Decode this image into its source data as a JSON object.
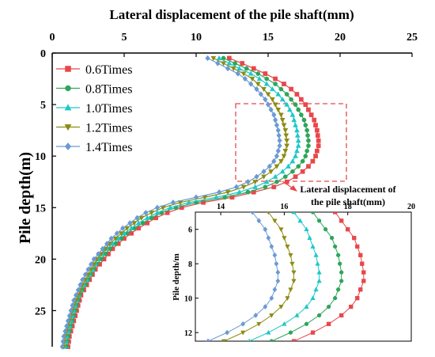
{
  "chart_data": [
    {
      "type": "line",
      "xlabel": "Lateral displacement of the pile shaft(mm)",
      "ylabel": "Pile depth(m)",
      "xlim": [
        0,
        25
      ],
      "ylim": [
        0,
        28.5
      ],
      "x_axis_position": "top",
      "y_inverted": true,
      "x_ticks": [
        "0",
        "5",
        "10",
        "15",
        "20",
        "25"
      ],
      "y_ticks": [
        "0",
        "5",
        "10",
        "15",
        "20",
        "25"
      ],
      "legend_position": "top-left",
      "depths": [
        0.5,
        1.0,
        1.5,
        2.0,
        2.5,
        3.0,
        3.5,
        4.0,
        4.5,
        5.0,
        5.5,
        6.0,
        6.5,
        7.0,
        7.5,
        8.0,
        8.5,
        9.0,
        9.5,
        10.0,
        10.5,
        11.0,
        11.5,
        12.0,
        12.5,
        13.0,
        13.5,
        14.0,
        14.5,
        15.0,
        15.5,
        16.0,
        16.5,
        17.0,
        17.5,
        18.0,
        18.5,
        19.0,
        19.5,
        20.0,
        20.5,
        21.0,
        21.5,
        22.0,
        22.5,
        23.0,
        23.5,
        24.0,
        24.5,
        25.0,
        25.5,
        26.0,
        26.5,
        27.0,
        27.5,
        28.0,
        28.5
      ],
      "series": [
        {
          "name": "0.6Times",
          "color": "#e8474b",
          "marker": "square",
          "values": [
            12.3,
            13.2,
            14.0,
            14.8,
            15.5,
            16.1,
            16.6,
            17.0,
            17.3,
            17.6,
            17.8,
            18.0,
            18.2,
            18.3,
            18.4,
            18.45,
            18.5,
            18.5,
            18.4,
            18.3,
            18.1,
            17.8,
            17.4,
            16.9,
            16.3,
            15.4,
            14.0,
            12.5,
            10.5,
            9.0,
            8.0,
            7.2,
            6.6,
            6.0,
            5.5,
            5.0,
            4.6,
            4.2,
            3.9,
            3.6,
            3.3,
            3.0,
            2.8,
            2.6,
            2.4,
            2.2,
            2.0,
            1.9,
            1.8,
            1.7,
            1.6,
            1.5,
            1.4,
            1.3,
            1.2,
            1.15,
            1.1
          ]
        },
        {
          "name": "0.8Times",
          "color": "#2ea55a",
          "marker": "circle",
          "values": [
            11.9,
            12.7,
            13.5,
            14.3,
            14.9,
            15.5,
            15.9,
            16.3,
            16.6,
            16.9,
            17.1,
            17.3,
            17.5,
            17.6,
            17.7,
            17.75,
            17.8,
            17.8,
            17.7,
            17.6,
            17.4,
            17.1,
            16.7,
            16.2,
            15.6,
            14.8,
            13.6,
            12.0,
            10.0,
            8.6,
            7.6,
            6.9,
            6.3,
            5.7,
            5.2,
            4.8,
            4.4,
            4.0,
            3.7,
            3.4,
            3.1,
            2.9,
            2.7,
            2.5,
            2.3,
            2.1,
            1.9,
            1.8,
            1.7,
            1.6,
            1.5,
            1.4,
            1.3,
            1.2,
            1.1,
            1.05,
            1.0
          ]
        },
        {
          "name": "1.0Times",
          "color": "#1ec8c8",
          "marker": "triangle-up",
          "values": [
            11.6,
            12.3,
            13.0,
            13.8,
            14.4,
            14.9,
            15.3,
            15.7,
            16.0,
            16.3,
            16.5,
            16.7,
            16.8,
            16.9,
            17.0,
            17.05,
            17.1,
            17.1,
            17.0,
            16.9,
            16.7,
            16.4,
            16.0,
            15.5,
            14.9,
            14.1,
            13.0,
            11.4,
            9.5,
            8.2,
            7.3,
            6.6,
            6.0,
            5.5,
            5.0,
            4.6,
            4.2,
            3.8,
            3.5,
            3.2,
            3.0,
            2.8,
            2.6,
            2.4,
            2.2,
            2.0,
            1.85,
            1.7,
            1.6,
            1.5,
            1.4,
            1.3,
            1.2,
            1.1,
            1.0,
            0.95,
            0.9
          ]
        },
        {
          "name": "1.2Times",
          "color": "#8c8c14",
          "marker": "triangle-down",
          "values": [
            11.2,
            11.9,
            12.6,
            13.3,
            13.9,
            14.3,
            14.7,
            15.0,
            15.3,
            15.5,
            15.7,
            15.9,
            16.0,
            16.1,
            16.2,
            16.25,
            16.3,
            16.3,
            16.2,
            16.1,
            15.9,
            15.6,
            15.2,
            14.7,
            14.1,
            13.3,
            12.2,
            10.6,
            8.9,
            7.7,
            6.9,
            6.2,
            5.7,
            5.2,
            4.8,
            4.4,
            4.0,
            3.7,
            3.4,
            3.1,
            2.9,
            2.7,
            2.5,
            2.3,
            2.1,
            1.95,
            1.8,
            1.65,
            1.5,
            1.4,
            1.3,
            1.2,
            1.1,
            1.0,
            0.9,
            0.85,
            0.8
          ]
        },
        {
          "name": "1.4Times",
          "color": "#6a9ad4",
          "marker": "diamond",
          "values": [
            10.8,
            11.5,
            12.2,
            12.9,
            13.4,
            13.8,
            14.2,
            14.5,
            14.8,
            15.0,
            15.2,
            15.4,
            15.5,
            15.6,
            15.7,
            15.75,
            15.8,
            15.8,
            15.7,
            15.6,
            15.4,
            15.1,
            14.7,
            14.2,
            13.6,
            12.8,
            11.6,
            10.0,
            8.4,
            7.3,
            6.5,
            5.9,
            5.4,
            4.9,
            4.5,
            4.1,
            3.8,
            3.5,
            3.2,
            2.9,
            2.7,
            2.5,
            2.3,
            2.1,
            1.95,
            1.8,
            1.65,
            1.5,
            1.4,
            1.3,
            1.2,
            1.1,
            1.0,
            0.9,
            0.8,
            0.75,
            0.7
          ]
        }
      ]
    },
    {
      "type": "line",
      "title": "Lateral displacement of the pile shaft(mm)",
      "ylabel": "Pile depth/m",
      "xlim": [
        13.2,
        20
      ],
      "ylim": [
        5,
        12.5
      ],
      "x_ticks": [
        "14",
        "16",
        "18",
        "20"
      ],
      "y_ticks": [
        "6",
        "8",
        "10",
        "12"
      ],
      "y_inverted": true,
      "x_axis_position": "top",
      "note": "zoom of the dashed region of the main chart"
    }
  ]
}
